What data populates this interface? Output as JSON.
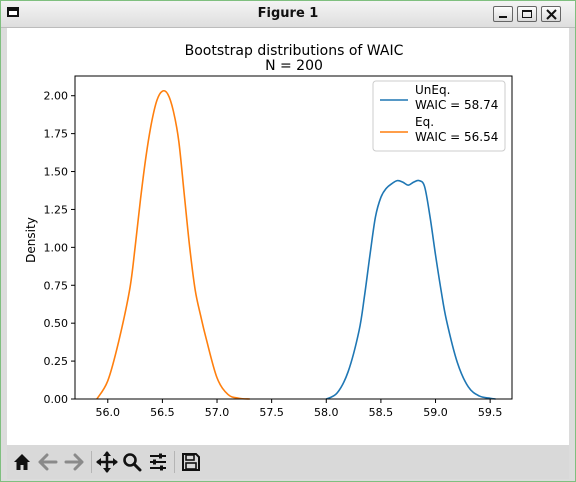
{
  "window": {
    "title": "Figure 1"
  },
  "toolbar": {
    "buttons": [
      "home-icon",
      "back-arrow-icon",
      "forward-arrow-icon",
      "pan-icon",
      "zoom-icon",
      "configure-subplots-icon",
      "save-icon"
    ]
  },
  "chart_data": {
    "type": "line",
    "title": "Bootstrap distributions of WAIC",
    "subtitle": "N = 200",
    "xlabel": "",
    "ylabel": "Density",
    "xlim": [
      55.7,
      59.7
    ],
    "ylim": [
      0,
      2.13
    ],
    "xticks": [
      "56.0",
      "56.5",
      "57.0",
      "57.5",
      "58.0",
      "58.5",
      "59.0",
      "59.5"
    ],
    "yticks": [
      "0.00",
      "0.25",
      "0.50",
      "0.75",
      "1.00",
      "1.25",
      "1.50",
      "1.75",
      "2.00"
    ],
    "grid": false,
    "legend_position": "top-right",
    "series": [
      {
        "label_line1": "UnEq.",
        "label_line2": "WAIC = 58.74",
        "color": "#1f77b4",
        "x": [
          58.0,
          58.1,
          58.2,
          58.3,
          58.35,
          58.4,
          58.45,
          58.5,
          58.55,
          58.6,
          58.65,
          58.7,
          58.75,
          58.8,
          58.85,
          58.9,
          58.95,
          59.0,
          59.05,
          59.1,
          59.2,
          59.3,
          59.4,
          59.5,
          59.55
        ],
        "y": [
          0.0,
          0.04,
          0.18,
          0.45,
          0.68,
          0.95,
          1.2,
          1.33,
          1.39,
          1.42,
          1.44,
          1.43,
          1.41,
          1.43,
          1.44,
          1.4,
          1.2,
          0.95,
          0.72,
          0.52,
          0.24,
          0.08,
          0.02,
          0.005,
          0.0
        ]
      },
      {
        "label_line1": "Eq.",
        "label_line2": "WAIC = 56.54",
        "color": "#ff7f0e",
        "x": [
          55.9,
          56.0,
          56.1,
          56.2,
          56.25,
          56.3,
          56.35,
          56.4,
          56.45,
          56.5,
          56.55,
          56.6,
          56.65,
          56.7,
          56.75,
          56.8,
          56.85,
          56.9,
          57.0,
          57.1,
          57.2,
          57.3
        ],
        "y": [
          0.0,
          0.12,
          0.38,
          0.72,
          1.0,
          1.32,
          1.6,
          1.82,
          1.97,
          2.03,
          2.01,
          1.9,
          1.7,
          1.35,
          1.0,
          0.72,
          0.55,
          0.4,
          0.14,
          0.03,
          0.005,
          0.0
        ]
      }
    ]
  }
}
